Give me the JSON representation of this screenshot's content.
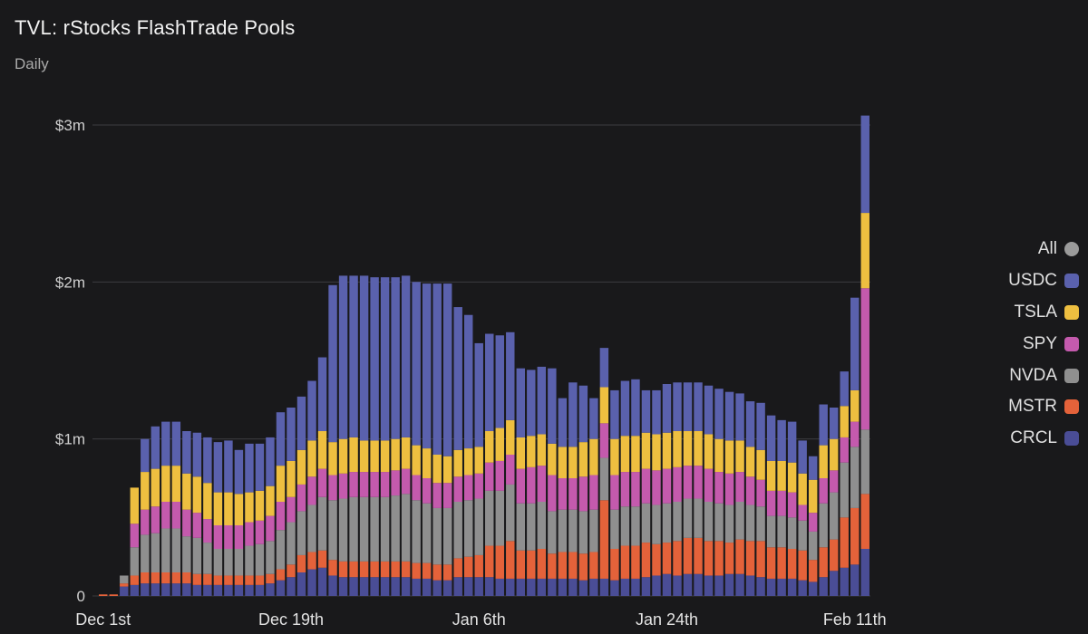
{
  "header": {
    "title": "TVL: rStocks FlashTrade Pools",
    "subtitle": "Daily"
  },
  "legend": [
    {
      "label": "All",
      "color": "#9b9b9b",
      "icon": "circle-swatch"
    },
    {
      "label": "USDC",
      "color": "#5a61ad"
    },
    {
      "label": "TSLA",
      "color": "#eebf40"
    },
    {
      "label": "SPY",
      "color": "#c45aad"
    },
    {
      "label": "NVDA",
      "color": "#8f8f8f"
    },
    {
      "label": "MSTR",
      "color": "#e4623a"
    },
    {
      "label": "CRCL",
      "color": "#4a4d96"
    }
  ],
  "chart_data": {
    "type": "bar",
    "stacked": true,
    "xlabel": "",
    "ylabel": "",
    "ylim": [
      0,
      3000000
    ],
    "yticks": [
      "0",
      "$1m",
      "$2m",
      "$3m"
    ],
    "ytick_values": [
      0,
      1000000,
      2000000,
      3000000
    ],
    "xticks": [
      "Dec 1st",
      "Dec 19th",
      "Jan 6th",
      "Jan 24th",
      "Feb 11th"
    ],
    "xtick_indices": [
      0,
      18,
      36,
      54,
      72
    ],
    "grid": true,
    "legend_position": "right",
    "categories": [
      "Nov 30",
      "Dec 1",
      "Dec 2",
      "Dec 3",
      "Dec 4",
      "Dec 5",
      "Dec 6",
      "Dec 7",
      "Dec 8",
      "Dec 9",
      "Dec 10",
      "Dec 11",
      "Dec 12",
      "Dec 13",
      "Dec 14",
      "Dec 15",
      "Dec 16",
      "Dec 17",
      "Dec 18",
      "Dec 19",
      "Dec 20",
      "Dec 21",
      "Dec 22",
      "Dec 23",
      "Dec 24",
      "Dec 25",
      "Dec 26",
      "Dec 27",
      "Dec 28",
      "Dec 29",
      "Dec 30",
      "Dec 31",
      "Jan 1",
      "Jan 2",
      "Jan 3",
      "Jan 4",
      "Jan 5",
      "Jan 6",
      "Jan 7",
      "Jan 8",
      "Jan 9",
      "Jan 10",
      "Jan 11",
      "Jan 12",
      "Jan 13",
      "Jan 14",
      "Jan 15",
      "Jan 16",
      "Jan 17",
      "Jan 18",
      "Jan 19",
      "Jan 20",
      "Jan 21",
      "Jan 22",
      "Jan 23",
      "Jan 24",
      "Jan 25",
      "Jan 26",
      "Jan 27",
      "Jan 28",
      "Jan 29",
      "Jan 30",
      "Jan 31",
      "Feb 1",
      "Feb 2",
      "Feb 3",
      "Feb 4",
      "Feb 5",
      "Feb 6",
      "Feb 7",
      "Feb 8",
      "Feb 9",
      "Feb 10",
      "Feb 11"
    ],
    "series": [
      {
        "name": "CRCL",
        "color": "#4a4d96",
        "values": [
          0,
          0,
          60000,
          70000,
          80000,
          80000,
          80000,
          80000,
          80000,
          70000,
          70000,
          70000,
          70000,
          70000,
          70000,
          70000,
          80000,
          100000,
          120000,
          150000,
          170000,
          180000,
          130000,
          120000,
          120000,
          120000,
          120000,
          120000,
          120000,
          120000,
          110000,
          110000,
          100000,
          100000,
          120000,
          120000,
          120000,
          120000,
          110000,
          110000,
          110000,
          110000,
          110000,
          110000,
          110000,
          110000,
          100000,
          110000,
          110000,
          100000,
          110000,
          110000,
          120000,
          130000,
          140000,
          130000,
          140000,
          140000,
          130000,
          130000,
          140000,
          140000,
          130000,
          120000,
          110000,
          110000,
          110000,
          100000,
          90000,
          120000,
          160000,
          180000,
          200000,
          300000
        ]
      },
      {
        "name": "MSTR",
        "color": "#e4623a",
        "values": [
          10000,
          10000,
          20000,
          60000,
          70000,
          70000,
          70000,
          70000,
          70000,
          70000,
          70000,
          60000,
          60000,
          60000,
          60000,
          60000,
          60000,
          70000,
          80000,
          110000,
          110000,
          110000,
          100000,
          100000,
          100000,
          100000,
          100000,
          100000,
          100000,
          100000,
          100000,
          100000,
          100000,
          100000,
          120000,
          130000,
          140000,
          200000,
          210000,
          240000,
          180000,
          180000,
          190000,
          160000,
          170000,
          170000,
          170000,
          170000,
          500000,
          200000,
          210000,
          210000,
          220000,
          200000,
          200000,
          220000,
          230000,
          230000,
          220000,
          220000,
          200000,
          220000,
          220000,
          230000,
          200000,
          200000,
          190000,
          190000,
          140000,
          190000,
          200000,
          320000,
          360000,
          350000
        ]
      },
      {
        "name": "NVDA",
        "color": "#8f8f8f",
        "values": [
          0,
          0,
          50000,
          180000,
          240000,
          250000,
          280000,
          280000,
          230000,
          230000,
          200000,
          170000,
          170000,
          170000,
          190000,
          200000,
          210000,
          250000,
          270000,
          280000,
          300000,
          340000,
          380000,
          400000,
          410000,
          410000,
          410000,
          410000,
          420000,
          430000,
          400000,
          380000,
          360000,
          360000,
          360000,
          360000,
          360000,
          350000,
          350000,
          360000,
          300000,
          300000,
          300000,
          270000,
          270000,
          270000,
          270000,
          270000,
          270000,
          250000,
          250000,
          250000,
          250000,
          250000,
          250000,
          250000,
          250000,
          250000,
          250000,
          240000,
          240000,
          240000,
          230000,
          220000,
          200000,
          200000,
          200000,
          190000,
          180000,
          280000,
          300000,
          350000,
          390000,
          410000
        ]
      },
      {
        "name": "SPY",
        "color": "#c45aad",
        "values": [
          0,
          0,
          0,
          150000,
          160000,
          170000,
          170000,
          170000,
          170000,
          160000,
          150000,
          150000,
          150000,
          150000,
          150000,
          150000,
          160000,
          180000,
          160000,
          170000,
          180000,
          180000,
          160000,
          160000,
          160000,
          160000,
          160000,
          160000,
          160000,
          160000,
          160000,
          160000,
          160000,
          160000,
          160000,
          160000,
          160000,
          180000,
          190000,
          190000,
          220000,
          230000,
          230000,
          230000,
          200000,
          200000,
          220000,
          220000,
          220000,
          220000,
          220000,
          220000,
          220000,
          220000,
          220000,
          220000,
          210000,
          210000,
          210000,
          200000,
          200000,
          190000,
          180000,
          170000,
          160000,
          160000,
          160000,
          100000,
          120000,
          160000,
          140000,
          160000,
          160000,
          900000
        ]
      },
      {
        "name": "TSLA",
        "color": "#eebf40",
        "values": [
          0,
          0,
          0,
          230000,
          240000,
          240000,
          230000,
          230000,
          230000,
          230000,
          230000,
          210000,
          210000,
          200000,
          190000,
          190000,
          190000,
          230000,
          230000,
          220000,
          230000,
          240000,
          210000,
          220000,
          220000,
          200000,
          200000,
          200000,
          200000,
          200000,
          190000,
          190000,
          180000,
          170000,
          170000,
          170000,
          170000,
          200000,
          210000,
          220000,
          200000,
          200000,
          200000,
          200000,
          200000,
          200000,
          220000,
          230000,
          230000,
          230000,
          230000,
          230000,
          230000,
          230000,
          230000,
          230000,
          220000,
          220000,
          220000,
          210000,
          210000,
          200000,
          190000,
          190000,
          190000,
          190000,
          190000,
          200000,
          210000,
          210000,
          200000,
          200000,
          200000,
          480000
        ]
      },
      {
        "name": "USDC",
        "color": "#5a61ad",
        "values": [
          0,
          0,
          0,
          0,
          210000,
          270000,
          280000,
          280000,
          270000,
          280000,
          290000,
          320000,
          330000,
          280000,
          310000,
          300000,
          310000,
          340000,
          340000,
          340000,
          380000,
          470000,
          1000000,
          1040000,
          1030000,
          1050000,
          1040000,
          1040000,
          1030000,
          1030000,
          1040000,
          1050000,
          1090000,
          1100000,
          910000,
          850000,
          660000,
          620000,
          590000,
          560000,
          440000,
          420000,
          430000,
          480000,
          310000,
          410000,
          360000,
          260000,
          250000,
          310000,
          350000,
          360000,
          270000,
          280000,
          310000,
          310000,
          310000,
          310000,
          310000,
          320000,
          310000,
          300000,
          290000,
          300000,
          290000,
          260000,
          260000,
          210000,
          150000,
          260000,
          200000,
          220000,
          590000,
          620000
        ]
      }
    ]
  }
}
